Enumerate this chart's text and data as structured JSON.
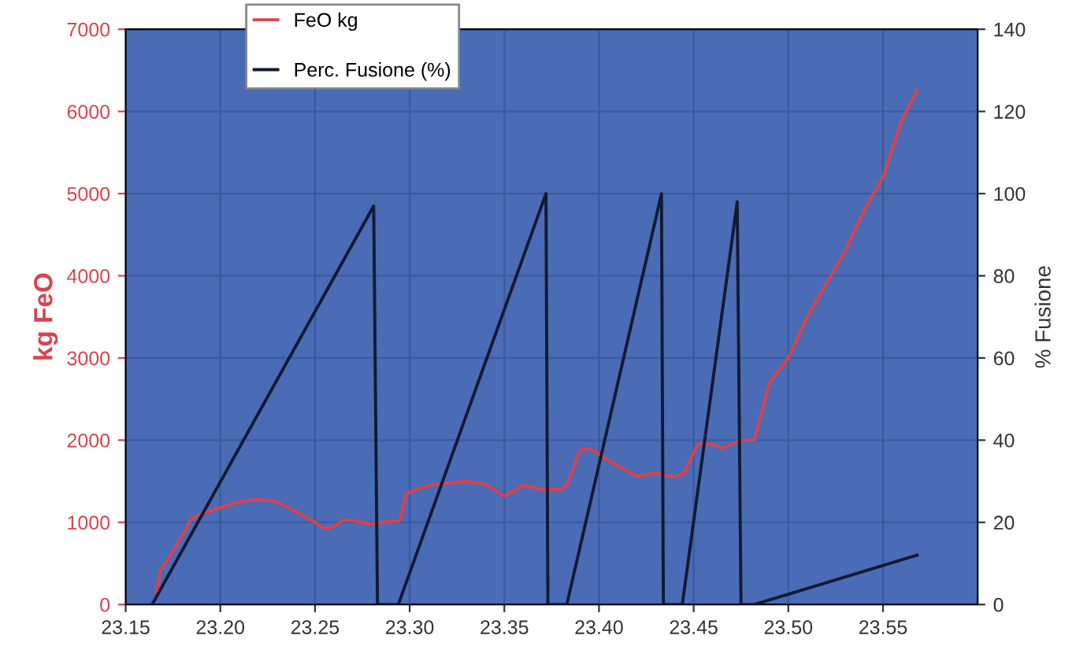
{
  "chart_data": {
    "type": "line",
    "ylabel": "kg FeO",
    "y2label": "% Fusione",
    "xlim": [
      23.15,
      23.6
    ],
    "xticks": [
      {
        "value": 23.15,
        "label": "23.15"
      },
      {
        "value": 23.2,
        "label": "23.20"
      },
      {
        "value": 23.25,
        "label": "23.25"
      },
      {
        "value": 23.3,
        "label": "23.30"
      },
      {
        "value": 23.35,
        "label": "23.35"
      },
      {
        "value": 23.4,
        "label": "23.40"
      },
      {
        "value": 23.45,
        "label": "23.45"
      },
      {
        "value": 23.5,
        "label": "23.50"
      },
      {
        "value": 23.55,
        "label": "23.55"
      }
    ],
    "ylim": [
      0,
      7000
    ],
    "yticks": [
      0,
      1000,
      2000,
      3000,
      4000,
      5000,
      6000,
      7000
    ],
    "y2lim": [
      0,
      140
    ],
    "y2ticks": [
      0,
      20,
      40,
      60,
      80,
      100,
      120,
      140
    ],
    "grid": true,
    "legend": "top left",
    "line_style": "solid",
    "marker": "none",
    "series": [
      {
        "name": "FeO kg",
        "color": "#d9434e",
        "x": [
          23.166,
          23.168,
          23.175,
          23.18,
          23.185,
          23.19,
          23.2,
          23.21,
          23.22,
          23.23,
          23.24,
          23.25,
          23.255,
          23.26,
          23.265,
          23.27,
          23.275,
          23.28,
          23.285,
          23.295,
          23.298,
          23.31,
          23.32,
          23.33,
          23.34,
          23.35,
          23.36,
          23.37,
          23.38,
          23.383,
          23.39,
          23.395,
          23.405,
          23.42,
          23.43,
          23.44,
          23.445,
          23.452,
          23.46,
          23.465,
          23.475,
          23.482,
          23.49,
          23.5,
          23.51,
          23.52,
          23.53,
          23.54,
          23.55,
          23.56,
          23.568
        ],
        "values": [
          100,
          400,
          650,
          850,
          1050,
          1100,
          1180,
          1250,
          1280,
          1250,
          1130,
          1000,
          920,
          950,
          1030,
          1020,
          1000,
          980,
          1000,
          1020,
          1350,
          1450,
          1480,
          1500,
          1460,
          1320,
          1450,
          1400,
          1400,
          1450,
          1880,
          1900,
          1750,
          1560,
          1600,
          1550,
          1600,
          1950,
          1950,
          1900,
          2000,
          2000,
          2700,
          3000,
          3500,
          3900,
          4300,
          4800,
          5200,
          5900,
          6250
        ]
      },
      {
        "name": "Perc. Fusione (%)",
        "color": "#111a33",
        "axis": "y2",
        "x": [
          23.164,
          23.281,
          23.283,
          23.294,
          23.372,
          23.373,
          23.383,
          23.433,
          23.434,
          23.444,
          23.473,
          23.475,
          23.482,
          23.568
        ],
        "values": [
          0,
          97,
          0,
          0,
          100,
          0,
          0,
          100,
          0,
          0,
          98,
          0,
          0,
          12
        ]
      }
    ]
  }
}
